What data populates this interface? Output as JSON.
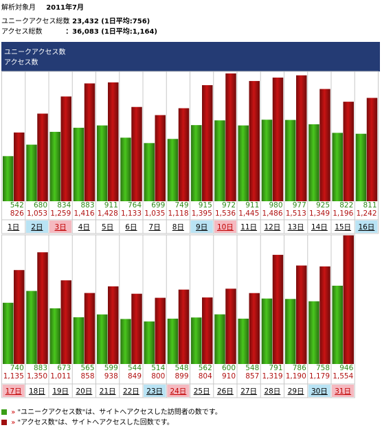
{
  "header": {
    "period_label": "解析対象月",
    "period_value": "2011年7月",
    "unique_label": "ユニークアクセス総数",
    "unique_value": "：23,432 (1日平均:756)",
    "access_label": "アクセス総数",
    "access_value": "：36,083 (1日平均:1,164)"
  },
  "banner": {
    "line1": "ユニークアクセス数",
    "line2": "アクセス数"
  },
  "colors": {
    "unique": "#3a9e17",
    "access": "#a00f0f",
    "header_bg": "#243b74",
    "saturday_bg": "#b9e3f4",
    "holiday_bg": "#f5b9c0"
  },
  "chart_data": {
    "type": "bar",
    "title": "",
    "categories": [
      "1日",
      "2日",
      "3日",
      "4日",
      "5日",
      "6日",
      "7日",
      "8日",
      "9日",
      "10日",
      "11日",
      "12日",
      "13日",
      "14日",
      "15日",
      "16日",
      "17日",
      "18日",
      "19日",
      "20日",
      "21日",
      "22日",
      "23日",
      "24日",
      "25日",
      "26日",
      "27日",
      "28日",
      "29日",
      "30日",
      "31日"
    ],
    "day_type": [
      "weekday",
      "saturday",
      "holiday",
      "weekday",
      "weekday",
      "weekday",
      "weekday",
      "weekday",
      "saturday",
      "holiday",
      "weekday",
      "weekday",
      "weekday",
      "weekday",
      "weekday",
      "saturday",
      "holiday",
      "weekday",
      "weekday",
      "weekday",
      "weekday",
      "weekday",
      "saturday",
      "holiday",
      "weekday",
      "weekday",
      "weekday",
      "weekday",
      "weekday",
      "saturday",
      "holiday"
    ],
    "series": [
      {
        "name": "ユニークアクセス数",
        "values": [
          542,
          680,
          834,
          883,
          911,
          764,
          699,
          749,
          915,
          972,
          911,
          980,
          977,
          925,
          822,
          811,
          740,
          883,
          673,
          565,
          599,
          544,
          514,
          548,
          562,
          600,
          548,
          791,
          786,
          758,
          946
        ]
      },
      {
        "name": "アクセス数",
        "values": [
          826,
          1053,
          1259,
          1416,
          1428,
          1133,
          1035,
          1118,
          1395,
          1536,
          1445,
          1486,
          1513,
          1349,
          1196,
          1242,
          1135,
          1350,
          1011,
          858,
          938,
          849,
          800,
          899,
          804,
          910,
          857,
          1319,
          1190,
          1179,
          1554
        ]
      }
    ],
    "value_labels": {
      "unique": [
        "542",
        "680",
        "834",
        "883",
        "911",
        "764",
        "699",
        "749",
        "915",
        "972",
        "911",
        "980",
        "977",
        "925",
        "822",
        "811",
        "740",
        "883",
        "673",
        "565",
        "599",
        "544",
        "514",
        "548",
        "562",
        "600",
        "548",
        "791",
        "786",
        "758",
        "946"
      ],
      "access": [
        "826",
        "1,053",
        "1,259",
        "1,416",
        "1,428",
        "1,133",
        "1,035",
        "1,118",
        "1,395",
        "1,536",
        "1,445",
        "1,486",
        "1,513",
        "1,349",
        "1,196",
        "1,242",
        "1,135",
        "1,350",
        "1,011",
        "858",
        "938",
        "849",
        "800",
        "899",
        "804",
        "910",
        "857",
        "1,319",
        "1,190",
        "1,179",
        "1,554"
      ]
    },
    "ylim": [
      0,
      1560
    ]
  },
  "legend": {
    "unique_text": "\"ユニークアクセス数\"は、サイトへアクセスした訪問者の数です。",
    "access_text": "\"アクセス数\"は、サイトへアクセスした回数です。",
    "arrow": "»"
  }
}
